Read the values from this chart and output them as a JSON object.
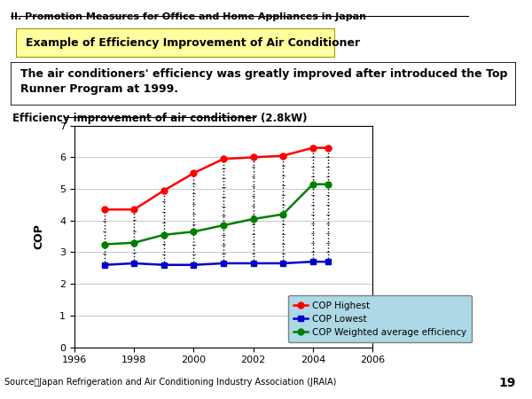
{
  "title_main": "II. Promotion Measures for Office and Home Appliances in Japan",
  "title_box": "Example of Efficiency Improvement of Air Conditioner",
  "text_box": "The air conditioners' efficiency was greatly improved after introduced the Top\nRunner Program at 1999.",
  "chart_title": "Efficiency improvement of air conditioner (2.8kW)",
  "ylabel": "COP",
  "source": "Source：Japan Refrigeration and Air Conditioning Industry Association (JRAIA)",
  "page_num": "19",
  "ylim": [
    0,
    7
  ],
  "xlim": [
    1996,
    2006
  ],
  "yticks": [
    0,
    1,
    2,
    3,
    4,
    5,
    6,
    7
  ],
  "xticks": [
    1996,
    1998,
    2000,
    2002,
    2004,
    2006
  ],
  "cop_highest_x": [
    1997,
    1998,
    1999,
    2000,
    2001,
    2002,
    2003,
    2004,
    2004.5
  ],
  "cop_highest_y": [
    4.35,
    4.35,
    4.95,
    5.5,
    5.95,
    6.0,
    6.05,
    6.3,
    6.3
  ],
  "cop_lowest_x": [
    1997,
    1998,
    1999,
    2000,
    2001,
    2002,
    2003,
    2004,
    2004.5
  ],
  "cop_lowest_y": [
    2.6,
    2.65,
    2.6,
    2.6,
    2.65,
    2.65,
    2.65,
    2.7,
    2.7
  ],
  "cop_wavg_x": [
    1997,
    1998,
    1999,
    2000,
    2001,
    2002,
    2003,
    2004,
    2004.5
  ],
  "cop_wavg_y": [
    3.25,
    3.3,
    3.55,
    3.65,
    3.85,
    4.05,
    4.2,
    5.15,
    5.15
  ],
  "bar_years": [
    1997,
    1998,
    1999,
    2000,
    2001,
    2002,
    2003,
    2004,
    2004.5
  ],
  "bar_high": [
    4.35,
    4.35,
    4.95,
    5.5,
    5.95,
    6.0,
    6.05,
    6.3,
    6.3
  ],
  "bar_low": [
    2.6,
    2.65,
    2.6,
    2.6,
    2.65,
    2.65,
    2.65,
    2.7,
    2.7
  ],
  "color_highest": "#ff0000",
  "color_lowest": "#0000cc",
  "color_wavg": "#008000",
  "legend_bg": "#add8e6",
  "background_color": "#ffffff",
  "title_box_bg": "#ffffa0",
  "title_box_edge": "#999900"
}
